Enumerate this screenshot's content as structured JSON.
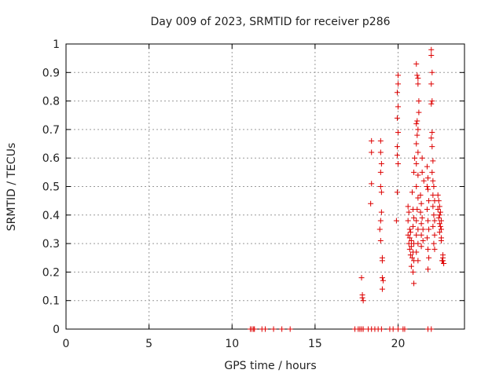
{
  "chart_data": {
    "type": "scatter",
    "title": "Day 009 of 2023, SRMTID for receiver p286",
    "xlabel": "GPS time / hours",
    "ylabel": "SRMTID / TECUs",
    "xlim": [
      0,
      24
    ],
    "ylim": [
      0,
      1
    ],
    "xticks": [
      0,
      5,
      10,
      15,
      20
    ],
    "yticks": [
      0,
      0.1,
      0.2,
      0.3,
      0.4,
      0.5,
      0.6,
      0.7,
      0.8,
      0.9,
      1
    ],
    "grid": true,
    "marker": "+",
    "color": "#dd0000",
    "series": [
      {
        "name": "SRMTID",
        "points": [
          [
            11.1,
            0
          ],
          [
            11.2,
            0
          ],
          [
            11.3,
            0
          ],
          [
            11.35,
            0
          ],
          [
            11.8,
            0
          ],
          [
            12.0,
            0
          ],
          [
            12.5,
            0
          ],
          [
            13.0,
            0
          ],
          [
            13.5,
            0
          ],
          [
            17.4,
            0
          ],
          [
            17.6,
            0
          ],
          [
            17.7,
            0
          ],
          [
            17.8,
            0
          ],
          [
            17.9,
            0
          ],
          [
            18.2,
            0
          ],
          [
            18.4,
            0
          ],
          [
            18.6,
            0
          ],
          [
            18.8,
            0
          ],
          [
            19.0,
            0
          ],
          [
            19.5,
            0
          ],
          [
            19.7,
            0
          ],
          [
            20.0,
            0
          ],
          [
            20.3,
            0
          ],
          [
            20.4,
            0
          ],
          [
            21.8,
            0
          ],
          [
            22.0,
            0
          ],
          [
            17.8,
            0.18
          ],
          [
            17.85,
            0.12
          ],
          [
            17.85,
            0.11
          ],
          [
            17.9,
            0.1
          ],
          [
            18.4,
            0.66
          ],
          [
            18.4,
            0.62
          ],
          [
            18.4,
            0.51
          ],
          [
            18.35,
            0.44
          ],
          [
            18.95,
            0.66
          ],
          [
            18.95,
            0.62
          ],
          [
            19.0,
            0.58
          ],
          [
            18.95,
            0.55
          ],
          [
            18.95,
            0.5
          ],
          [
            19.0,
            0.48
          ],
          [
            19.0,
            0.41
          ],
          [
            18.95,
            0.38
          ],
          [
            18.9,
            0.35
          ],
          [
            18.95,
            0.31
          ],
          [
            19.05,
            0.25
          ],
          [
            19.05,
            0.24
          ],
          [
            19.05,
            0.18
          ],
          [
            19.1,
            0.17
          ],
          [
            19.05,
            0.14
          ],
          [
            20.0,
            0.89
          ],
          [
            20.0,
            0.86
          ],
          [
            19.95,
            0.83
          ],
          [
            20.0,
            0.78
          ],
          [
            19.95,
            0.74
          ],
          [
            20.0,
            0.69
          ],
          [
            19.95,
            0.64
          ],
          [
            19.95,
            0.61
          ],
          [
            20.0,
            0.58
          ],
          [
            19.95,
            0.48
          ],
          [
            19.9,
            0.38
          ],
          [
            20.6,
            0.43
          ],
          [
            20.65,
            0.41
          ],
          [
            20.6,
            0.38
          ],
          [
            20.7,
            0.35
          ],
          [
            20.75,
            0.34
          ],
          [
            20.6,
            0.33
          ],
          [
            20.7,
            0.32
          ],
          [
            20.8,
            0.31
          ],
          [
            20.65,
            0.3
          ],
          [
            20.8,
            0.29
          ],
          [
            20.7,
            0.28
          ],
          [
            20.9,
            0.27
          ],
          [
            20.75,
            0.26
          ],
          [
            20.85,
            0.25
          ],
          [
            20.95,
            0.24
          ],
          [
            20.8,
            0.22
          ],
          [
            20.9,
            0.2
          ],
          [
            20.95,
            0.16
          ],
          [
            20.95,
            0.3
          ],
          [
            20.9,
            0.36
          ],
          [
            20.95,
            0.39
          ],
          [
            20.9,
            0.42
          ],
          [
            20.85,
            0.48
          ],
          [
            20.95,
            0.55
          ],
          [
            21.0,
            0.6
          ],
          [
            21.1,
            0.93
          ],
          [
            21.15,
            0.89
          ],
          [
            21.2,
            0.88
          ],
          [
            21.2,
            0.86
          ],
          [
            21.25,
            0.8
          ],
          [
            21.25,
            0.76
          ],
          [
            21.15,
            0.73
          ],
          [
            21.1,
            0.72
          ],
          [
            21.2,
            0.7
          ],
          [
            21.15,
            0.68
          ],
          [
            21.1,
            0.65
          ],
          [
            21.2,
            0.62
          ],
          [
            21.1,
            0.58
          ],
          [
            21.2,
            0.54
          ],
          [
            21.1,
            0.5
          ],
          [
            21.2,
            0.46
          ],
          [
            21.15,
            0.42
          ],
          [
            21.1,
            0.38
          ],
          [
            21.2,
            0.35
          ],
          [
            21.1,
            0.33
          ],
          [
            21.2,
            0.3
          ],
          [
            21.1,
            0.27
          ],
          [
            21.2,
            0.24
          ],
          [
            21.35,
            0.47
          ],
          [
            21.4,
            0.44
          ],
          [
            21.35,
            0.41
          ],
          [
            21.45,
            0.39
          ],
          [
            21.4,
            0.37
          ],
          [
            21.5,
            0.35
          ],
          [
            21.4,
            0.33
          ],
          [
            21.5,
            0.31
          ],
          [
            21.4,
            0.29
          ],
          [
            21.45,
            0.55
          ],
          [
            21.45,
            0.6
          ],
          [
            21.55,
            0.52
          ],
          [
            21.75,
            0.57
          ],
          [
            21.8,
            0.53
          ],
          [
            21.75,
            0.5
          ],
          [
            21.8,
            0.49
          ],
          [
            21.85,
            0.45
          ],
          [
            21.75,
            0.42
          ],
          [
            21.8,
            0.38
          ],
          [
            21.85,
            0.35
          ],
          [
            21.75,
            0.32
          ],
          [
            21.8,
            0.28
          ],
          [
            21.85,
            0.25
          ],
          [
            21.8,
            0.21
          ],
          [
            22.0,
            0.98
          ],
          [
            22.0,
            0.96
          ],
          [
            22.05,
            0.9
          ],
          [
            22.0,
            0.86
          ],
          [
            22.05,
            0.8
          ],
          [
            22.0,
            0.79
          ],
          [
            22.05,
            0.69
          ],
          [
            22.0,
            0.67
          ],
          [
            22.05,
            0.64
          ],
          [
            22.1,
            0.59
          ],
          [
            22.05,
            0.55
          ],
          [
            22.1,
            0.52
          ],
          [
            22.15,
            0.5
          ],
          [
            22.1,
            0.47
          ],
          [
            22.2,
            0.45
          ],
          [
            22.1,
            0.43
          ],
          [
            22.15,
            0.4
          ],
          [
            22.2,
            0.38
          ],
          [
            22.1,
            0.36
          ],
          [
            22.2,
            0.33
          ],
          [
            22.15,
            0.3
          ],
          [
            22.2,
            0.28
          ],
          [
            22.4,
            0.47
          ],
          [
            22.45,
            0.45
          ],
          [
            22.5,
            0.43
          ],
          [
            22.4,
            0.42
          ],
          [
            22.55,
            0.41
          ],
          [
            22.5,
            0.4
          ],
          [
            22.45,
            0.39
          ],
          [
            22.6,
            0.38
          ],
          [
            22.5,
            0.37
          ],
          [
            22.55,
            0.36
          ],
          [
            22.6,
            0.35
          ],
          [
            22.5,
            0.34
          ],
          [
            22.6,
            0.32
          ],
          [
            22.6,
            0.31
          ],
          [
            22.7,
            0.26
          ],
          [
            22.65,
            0.24
          ],
          [
            22.7,
            0.24
          ],
          [
            22.75,
            0.23
          ],
          [
            22.7,
            0.25
          ]
        ]
      }
    ]
  }
}
